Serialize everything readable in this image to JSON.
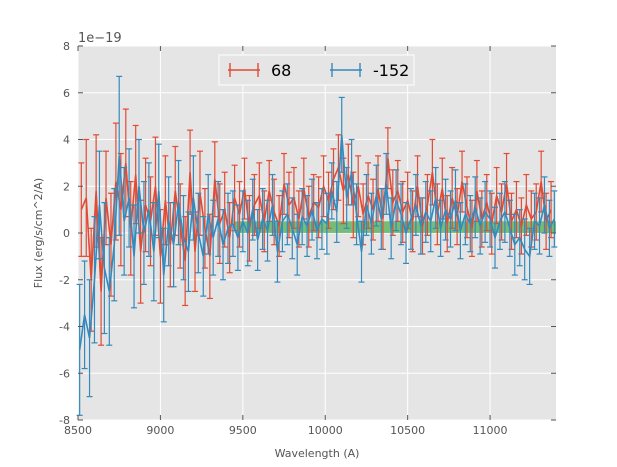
{
  "chart_data": {
    "type": "line",
    "title": "",
    "xlabel": "Wavelength (A)",
    "ylabel": "Flux (erg/s/cm^2/A)",
    "y_offset_label": "1e−19",
    "xlim": [
      8500,
      11400
    ],
    "ylim": [
      -8,
      8
    ],
    "xticks": [
      8500,
      9000,
      9500,
      10000,
      10500,
      11000
    ],
    "yticks": [
      -8,
      -6,
      -4,
      -2,
      0,
      2,
      4,
      6,
      8
    ],
    "grid": true,
    "legend_location": "top-center",
    "colors": {
      "series_68": "#e24a33",
      "series_neg152": "#348abd",
      "band": "#2ca02c",
      "plot_bg": "#e5e5e5"
    },
    "band": {
      "x_start": 9450,
      "x_end": 11400,
      "y_low": 0.0,
      "y_high": 0.5
    },
    "series": [
      {
        "name": "68",
        "x": [
          8520,
          8550,
          8580,
          8610,
          8640,
          8670,
          8700,
          8730,
          8760,
          8790,
          8820,
          8850,
          8880,
          8910,
          8940,
          8970,
          9000,
          9030,
          9060,
          9090,
          9120,
          9150,
          9180,
          9210,
          9240,
          9270,
          9300,
          9330,
          9360,
          9390,
          9420,
          9450,
          9480,
          9510,
          9540,
          9570,
          9600,
          9630,
          9660,
          9690,
          9720,
          9750,
          9780,
          9810,
          9840,
          9870,
          9900,
          9930,
          9960,
          9990,
          10020,
          10050,
          10080,
          10110,
          10140,
          10170,
          10200,
          10230,
          10260,
          10290,
          10320,
          10350,
          10380,
          10410,
          10440,
          10470,
          10500,
          10530,
          10560,
          10590,
          10620,
          10650,
          10680,
          10710,
          10740,
          10770,
          10800,
          10830,
          10860,
          10890,
          10920,
          10950,
          10980,
          11010,
          11040,
          11070,
          11100,
          11130,
          11160,
          11190,
          11220,
          11250,
          11280,
          11310,
          11340,
          11370
        ],
        "y": [
          1.0,
          1.5,
          -2.0,
          1.8,
          -2.5,
          1.5,
          -0.5,
          2.2,
          1.0,
          3.0,
          0.2,
          2.5,
          -0.8,
          1.2,
          0.5,
          2.0,
          -1.0,
          1.4,
          -0.5,
          1.8,
          0.3,
          -1.2,
          2.6,
          -0.8,
          1.7,
          0.2,
          -1.0,
          2.3,
          0.4,
          1.0,
          -0.2,
          1.5,
          0.8,
          1.9,
          0.2,
          1.2,
          1.6,
          0.5,
          1.8,
          0.9,
          0.3,
          2.1,
          1.2,
          1.5,
          0.6,
          1.9,
          0.7,
          1.3,
          1.1,
          2.0,
          1.4,
          2.3,
          2.8,
          1.8,
          2.5,
          1.2,
          2.0,
          0.8,
          1.6,
          1.0,
          1.9,
          0.6,
          3.2,
          1.3,
          1.8,
          0.9,
          1.4,
          0.5,
          2.0,
          0.3,
          1.2,
          2.6,
          0.8,
          1.9,
          0.4,
          1.5,
          0.7,
          2.2,
          1.1,
          0.2,
          1.8,
          0.6,
          1.3,
          0.4,
          1.6,
          0.9,
          2.1,
          0.5,
          1.0,
          0.3,
          1.2,
          0.6,
          0.9,
          2.2,
          0.5,
          1.0
        ],
        "yerr": [
          2.0,
          2.5,
          2.2,
          2.4,
          2.3,
          2.0,
          2.2,
          2.5,
          2.4,
          2.3,
          2.0,
          2.1,
          2.2,
          2.0,
          1.9,
          2.1,
          2.0,
          1.9,
          1.8,
          1.9,
          1.8,
          1.9,
          1.8,
          1.7,
          1.8,
          1.7,
          1.8,
          1.6,
          1.7,
          1.6,
          1.5,
          1.4,
          1.4,
          1.3,
          1.4,
          1.3,
          1.4,
          1.3,
          1.3,
          1.4,
          1.3,
          1.3,
          1.4,
          1.3,
          1.2,
          1.3,
          1.3,
          1.2,
          1.3,
          1.3,
          1.2,
          1.3,
          1.4,
          1.4,
          1.3,
          1.4,
          1.3,
          1.3,
          1.4,
          1.3,
          1.4,
          1.3,
          1.3,
          1.4,
          1.3,
          1.3,
          1.2,
          1.3,
          1.3,
          1.2,
          1.3,
          1.4,
          1.3,
          1.3,
          1.2,
          1.3,
          1.2,
          1.3,
          1.3,
          1.2,
          1.3,
          1.2,
          1.2,
          1.3,
          1.2,
          1.2,
          1.3,
          1.2,
          1.2,
          1.2,
          1.3,
          1.2,
          1.2,
          1.3,
          1.2,
          1.2
        ]
      },
      {
        "name": "-152",
        "x": [
          8510,
          8540,
          8570,
          8600,
          8630,
          8660,
          8690,
          8720,
          8750,
          8780,
          8810,
          8840,
          8870,
          8900,
          8930,
          8960,
          8990,
          9020,
          9050,
          9080,
          9110,
          9140,
          9170,
          9200,
          9230,
          9260,
          9290,
          9320,
          9350,
          9380,
          9410,
          9440,
          9470,
          9500,
          9530,
          9560,
          9590,
          9620,
          9650,
          9680,
          9710,
          9740,
          9770,
          9800,
          9830,
          9860,
          9890,
          9920,
          9950,
          9980,
          10010,
          10040,
          10070,
          10100,
          10130,
          10160,
          10190,
          10220,
          10250,
          10280,
          10310,
          10340,
          10370,
          10400,
          10430,
          10460,
          10490,
          10520,
          10550,
          10580,
          10610,
          10640,
          10670,
          10700,
          10730,
          10760,
          10790,
          10820,
          10850,
          10880,
          10910,
          10940,
          10970,
          11000,
          11030,
          11060,
          11090,
          11120,
          11150,
          11180,
          11210,
          11240,
          11270,
          11300,
          11330,
          11360,
          11390
        ],
        "y": [
          -5.0,
          -3.5,
          -4.5,
          -2.0,
          1.2,
          -1.5,
          -2.5,
          -0.5,
          3.3,
          0.5,
          1.5,
          -1.0,
          2.0,
          0.0,
          1.0,
          -0.8,
          1.8,
          -1.8,
          0.5,
          -0.5,
          1.3,
          -0.2,
          -0.8,
          1.5,
          0.0,
          -1.0,
          0.8,
          -0.2,
          0.6,
          -0.5,
          0.2,
          0.4,
          -0.2,
          0.5,
          0.0,
          1.0,
          -0.3,
          0.6,
          0.1,
          1.2,
          -0.8,
          0.5,
          0.8,
          0.2,
          -0.5,
          0.7,
          0.3,
          1.0,
          0.1,
          0.6,
          0.4,
          1.8,
          0.9,
          4.2,
          1.5,
          2.6,
          0.8,
          -0.8,
          1.2,
          0.4,
          1.6,
          0.6,
          2.1,
          0.2,
          1.4,
          0.8,
          0.0,
          0.6,
          1.2,
          0.3,
          0.9,
          0.5,
          1.5,
          0.2,
          1.0,
          0.6,
          1.4,
          0.1,
          0.8,
          0.4,
          1.1,
          0.3,
          0.9,
          0.6,
          -0.2,
          0.5,
          0.9,
          0.2,
          -0.5,
          -0.2,
          -0.7,
          -1.0,
          0.5,
          0.3,
          1.2,
          0.2,
          0.6
        ],
        "yerr": [
          2.8,
          2.3,
          2.5,
          2.7,
          2.3,
          2.8,
          2.3,
          2.4,
          3.4,
          2.3,
          2.1,
          2.2,
          2.0,
          2.2,
          2.0,
          2.1,
          2.0,
          2.0,
          1.9,
          1.8,
          1.8,
          1.8,
          1.7,
          1.8,
          1.7,
          1.7,
          1.7,
          1.6,
          1.6,
          1.5,
          1.5,
          1.4,
          1.4,
          1.3,
          1.4,
          1.3,
          1.3,
          1.3,
          1.3,
          1.3,
          1.3,
          1.3,
          1.3,
          1.3,
          1.3,
          1.2,
          1.3,
          1.3,
          1.2,
          1.3,
          1.3,
          1.2,
          1.3,
          1.6,
          1.3,
          1.4,
          1.3,
          1.3,
          1.3,
          1.3,
          1.3,
          1.3,
          1.3,
          1.3,
          1.3,
          1.3,
          1.3,
          1.3,
          1.3,
          1.2,
          1.3,
          1.3,
          1.3,
          1.2,
          1.3,
          1.2,
          1.3,
          1.2,
          1.3,
          1.2,
          1.3,
          1.2,
          1.3,
          1.2,
          1.3,
          1.2,
          1.3,
          1.2,
          1.3,
          1.2,
          1.3,
          1.2,
          1.2,
          1.2,
          1.2,
          1.2,
          1.2
        ]
      }
    ]
  }
}
